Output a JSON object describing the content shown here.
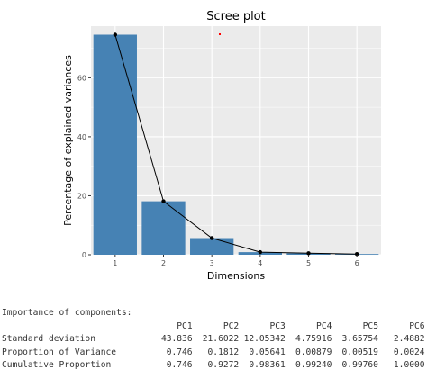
{
  "chart_data": {
    "type": "bar",
    "title": "Scree plot",
    "xlabel": "Dimensions",
    "ylabel": "Percentage of explained variances",
    "categories": [
      "1",
      "2",
      "3",
      "4",
      "5",
      "6"
    ],
    "values": [
      74.6,
      18.12,
      5.641,
      0.879,
      0.519,
      0.24
    ],
    "line": true,
    "ylim": [
      0,
      77.5
    ],
    "yticks": [
      0,
      20,
      40,
      60
    ],
    "grid": true,
    "colors": {
      "bar": "#4682b4",
      "line": "#000000",
      "panel": "#ebebeb",
      "grid": "#ffffff",
      "marker": "#ff0000"
    }
  },
  "summary": {
    "title": "Importance of components:",
    "columns": [
      "PC1",
      "PC2",
      "PC3",
      "PC4",
      "PC5",
      "PC6"
    ],
    "rows": [
      {
        "label": "Standard deviation",
        "values": [
          "43.836",
          "21.6022",
          "12.05342",
          "4.75916",
          "3.65754",
          "2.4882"
        ]
      },
      {
        "label": "Proportion of Variance",
        "values": [
          "0.746",
          "0.1812",
          "0.05641",
          "0.00879",
          "0.00519",
          "0.0024"
        ]
      },
      {
        "label": "Cumulative Proportion",
        "values": [
          "0.746",
          "0.9272",
          "0.98361",
          "0.99240",
          "0.99760",
          "1.0000"
        ]
      }
    ]
  }
}
